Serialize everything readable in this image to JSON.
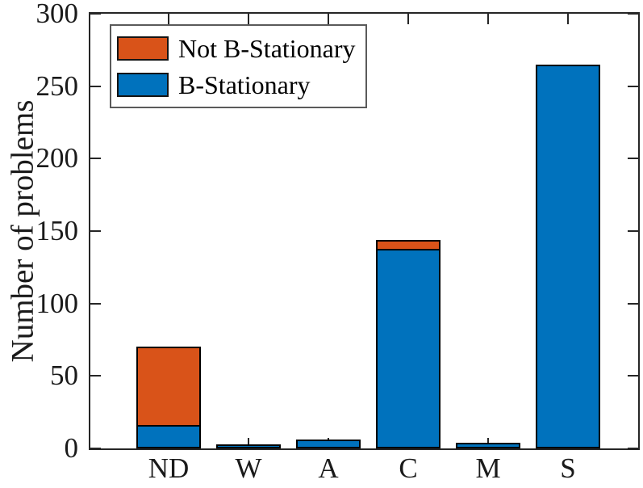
{
  "chart_data": {
    "type": "bar",
    "stacked": true,
    "title": "",
    "xlabel": "",
    "ylabel": "Number of problems",
    "categories": [
      "ND",
      "W",
      "A",
      "C",
      "M",
      "S"
    ],
    "series": [
      {
        "name": "B-Stationary",
        "color": "#0072BD",
        "values": [
          16,
          3,
          6,
          138,
          4,
          265
        ]
      },
      {
        "name": "Not B-Stationary",
        "color": "#D95319",
        "values": [
          54,
          0,
          0,
          6,
          0,
          0
        ]
      }
    ],
    "totals": [
      70,
      3,
      6,
      144,
      4,
      265
    ],
    "ylim": [
      0,
      300
    ],
    "yticks": [
      0,
      50,
      100,
      150,
      200,
      250,
      300
    ],
    "grid": false,
    "legend": {
      "position": "top-left",
      "entries": [
        {
          "label": "Not B-Stationary",
          "color": "#D95319"
        },
        {
          "label": "B-Stationary",
          "color": "#0072BD"
        }
      ]
    },
    "axis_color": "#262626",
    "bar_edge_color": "#000000",
    "background": "#ffffff"
  }
}
